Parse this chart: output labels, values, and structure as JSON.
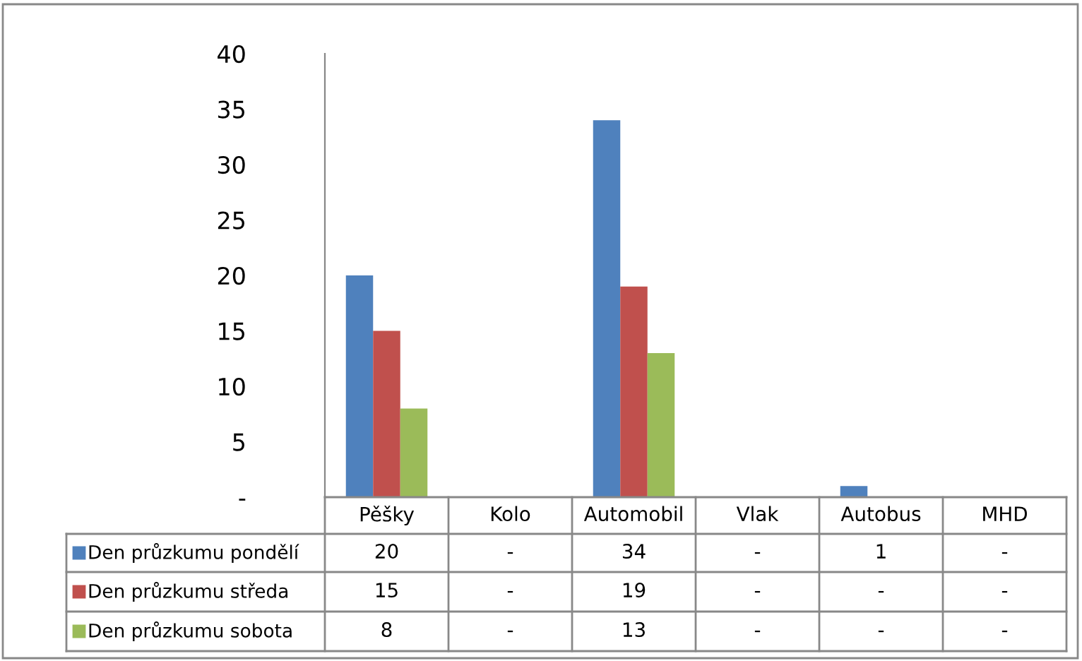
{
  "chart_data": {
    "type": "bar",
    "categories": [
      "Pěšky",
      "Kolo",
      "Automobil",
      "Vlak",
      "Autobus",
      "MHD"
    ],
    "series": [
      {
        "name": "Den průzkumu pondělí",
        "color": "#4f81bd",
        "values": [
          20,
          0,
          34,
          0,
          1,
          0
        ],
        "value_labels": [
          "20",
          "-",
          "34",
          "-",
          "1",
          "-"
        ]
      },
      {
        "name": "Den průzkumu středa",
        "color": "#c0504d",
        "values": [
          15,
          0,
          19,
          0,
          0,
          0
        ],
        "value_labels": [
          "15",
          "-",
          "19",
          "-",
          "-",
          "-"
        ]
      },
      {
        "name": "Den průzkumu sobota",
        "color": "#9bbb59",
        "values": [
          8,
          0,
          13,
          0,
          0,
          0
        ],
        "value_labels": [
          "8",
          "-",
          "13",
          "-",
          "-",
          "-"
        ]
      }
    ],
    "ylim": [
      0,
      40
    ],
    "yticks": [
      {
        "value": 0,
        "label": "-"
      },
      5,
      10,
      15,
      20,
      25,
      30,
      35,
      40
    ],
    "grid": false,
    "legend": "bottom"
  }
}
